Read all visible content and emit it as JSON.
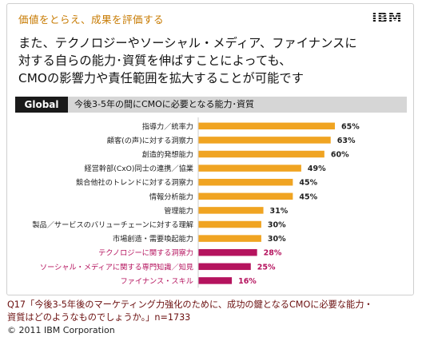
{
  "slide": {
    "subtitle": "価値をとらえ、成果を評価する",
    "logo": "IBM",
    "headline": [
      "また、テクノロジーやソーシャル・メディア、ファイナンスに",
      "対する自らの能力･資質を伸ばすことによっても、",
      "CMOの影響力や責任範囲を拡大することが可能です"
    ]
  },
  "chart_header": {
    "badge": "Global",
    "title": "今後3-5年の間にCMOに必要となる能力･資質"
  },
  "chart_data": {
    "type": "bar",
    "orientation": "horizontal",
    "categories": [
      "指導力／統率力",
      "顧客(の声)に対する洞察力",
      "創造的発想能力",
      "経営幹部(CxO)同士の連携／協業",
      "競合他社のトレンドに対する洞察力",
      "情報分析能力",
      "管理能力",
      "製品／サービスのバリューチェーンに対する理解",
      "市場創造・需要喚起能力",
      "テクノロジーに関する洞察力",
      "ソーシャル・メディアに関する専門知識／知見",
      "ファイナンス・スキル"
    ],
    "values": [
      65,
      63,
      60,
      49,
      45,
      45,
      31,
      30,
      30,
      28,
      25,
      16
    ],
    "value_labels": [
      "65%",
      "63%",
      "60%",
      "49%",
      "45%",
      "45%",
      "31%",
      "30%",
      "30%",
      "28%",
      "25%",
      "16%"
    ],
    "xlim": [
      0,
      65
    ],
    "highlight_from_index": 9,
    "colors": {
      "bar": "#f0a422",
      "highlight_bar": "#b5135e",
      "label": "#222222",
      "highlight_label": "#b5135e"
    }
  },
  "caption": {
    "lines": [
      "Q17「今後3-5年後のマーケティング力強化のために、成功の鍵となるCMOに必要な能力・",
      "資質はどのようなものでしょうか。」n=1733"
    ],
    "copyright": "© 2011 IBM Corporation"
  }
}
